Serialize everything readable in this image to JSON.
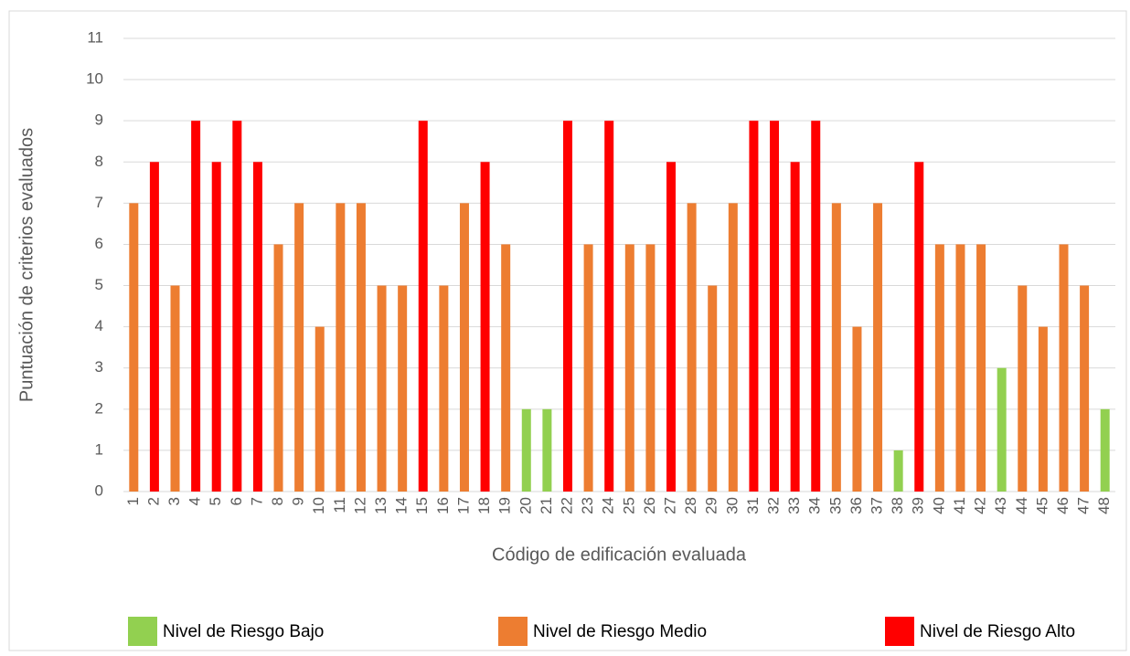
{
  "chart_data": {
    "type": "bar",
    "x_label": "Código de edificación evaluada",
    "y_label": "Puntuación de criterios evaluados",
    "categories": [
      "1",
      "2",
      "3",
      "4",
      "5",
      "6",
      "7",
      "8",
      "9",
      "10",
      "11",
      "12",
      "13",
      "14",
      "15",
      "16",
      "17",
      "18",
      "19",
      "20",
      "21",
      "22",
      "23",
      "24",
      "25",
      "26",
      "27",
      "28",
      "29",
      "30",
      "31",
      "32",
      "33",
      "34",
      "35",
      "36",
      "37",
      "38",
      "39",
      "40",
      "41",
      "42",
      "43",
      "44",
      "45",
      "46",
      "47",
      "48"
    ],
    "series": [
      {
        "name": "Nivel de Riesgo Bajo",
        "color": "#92d050",
        "values": [
          null,
          null,
          null,
          null,
          null,
          null,
          null,
          null,
          null,
          null,
          null,
          null,
          null,
          null,
          null,
          null,
          null,
          null,
          null,
          2,
          2,
          null,
          null,
          null,
          null,
          null,
          null,
          null,
          null,
          null,
          null,
          null,
          null,
          null,
          null,
          null,
          null,
          1,
          null,
          null,
          null,
          null,
          3,
          null,
          null,
          null,
          null,
          2
        ]
      },
      {
        "name": "Nivel de Riesgo Medio",
        "color": "#ed7d31",
        "values": [
          7,
          null,
          5,
          null,
          null,
          null,
          null,
          6,
          7,
          4,
          7,
          7,
          5,
          5,
          null,
          5,
          7,
          null,
          6,
          null,
          null,
          null,
          6,
          null,
          6,
          6,
          null,
          7,
          5,
          7,
          null,
          null,
          null,
          null,
          7,
          4,
          7,
          null,
          null,
          6,
          6,
          6,
          null,
          5,
          4,
          6,
          5,
          null
        ]
      },
      {
        "name": "Nivel de Riesgo Alto",
        "color": "#ff0000",
        "values": [
          null,
          8,
          null,
          9,
          8,
          9,
          8,
          null,
          null,
          null,
          null,
          null,
          null,
          null,
          9,
          null,
          null,
          8,
          null,
          null,
          null,
          9,
          null,
          9,
          null,
          null,
          8,
          null,
          null,
          null,
          9,
          9,
          8,
          9,
          null,
          null,
          null,
          null,
          8,
          null,
          null,
          null,
          null,
          null,
          null,
          null,
          null,
          null
        ]
      }
    ],
    "ylim": [
      0,
      11
    ],
    "yticks": [
      0,
      1,
      2,
      3,
      4,
      5,
      6,
      7,
      8,
      9,
      10,
      11
    ],
    "grid": true,
    "legend": "bottom"
  }
}
